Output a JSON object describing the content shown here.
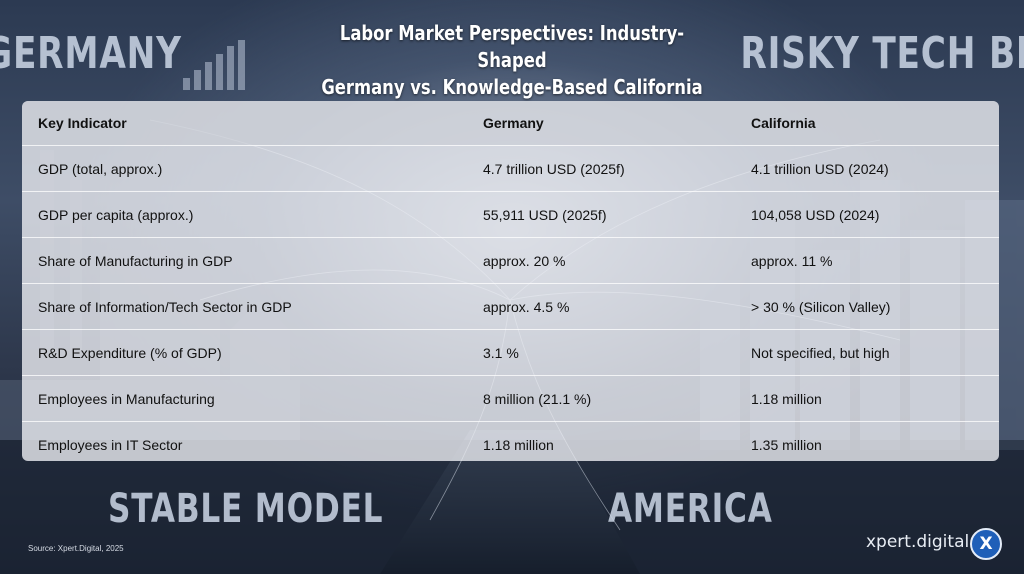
{
  "corner_words": {
    "top_left": "GERMANY",
    "top_right": "RISKY TECH BET",
    "bottom_left": "STABLE MODEL",
    "bottom_right": "AMERICA"
  },
  "title": {
    "line1": "Labor Market Perspectives: Industry-Shaped",
    "line2": "Germany vs. Knowledge-Based California"
  },
  "table": {
    "headers": [
      "Key Indicator",
      "Germany",
      "California"
    ],
    "rows": [
      [
        "GDP (total, approx.)",
        "4.7 trillion USD (2025f)",
        "4.1 trillion USD (2024)"
      ],
      [
        "GDP per capita (approx.)",
        "55,911 USD (2025f)",
        "104,058 USD (2024)"
      ],
      [
        "Share of Manufacturing in GDP",
        "approx. 20 %",
        "approx. 11 %"
      ],
      [
        "Share of Information/Tech Sector in GDP",
        "approx. 4.5 %",
        "> 30 % (Silicon Valley)"
      ],
      [
        "R&D Expenditure (% of GDP)",
        "3.1 %",
        "Not specified, but high"
      ],
      [
        "Employees in Manufacturing",
        "8 million (21.1 %)",
        "1.18 million"
      ],
      [
        "Employees in IT Sector",
        "1.18 million",
        "1.35 million"
      ]
    ]
  },
  "source": "Source: Xpert.Digital, 2025",
  "brand": {
    "name": "xpert.digital",
    "logo_letter": "X"
  },
  "colors": {
    "logo_blue": "#1f5fb8",
    "table_bg": "#eceef2"
  }
}
